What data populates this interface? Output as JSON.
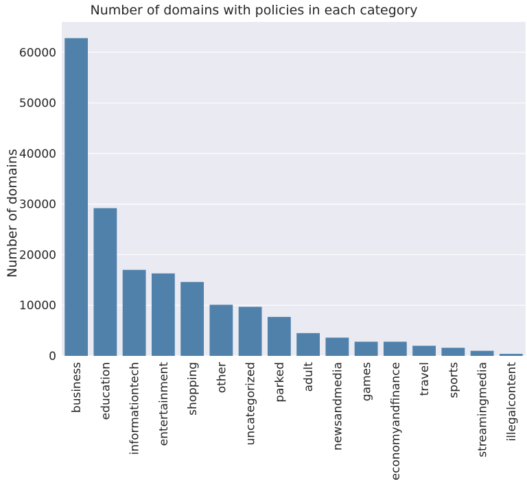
{
  "chart_data": {
    "type": "bar",
    "title": "Number of domains with policies in each category",
    "xlabel": "",
    "ylabel": "Number of domains",
    "categories": [
      "business",
      "education",
      "informationtech",
      "entertainment",
      "shopping",
      "other",
      "uncategorized",
      "parked",
      "adult",
      "newsandmedia",
      "games",
      "economyandfinance",
      "travel",
      "sports",
      "streamingmedia",
      "illegalcontent"
    ],
    "values": [
      62800,
      29200,
      17000,
      16300,
      14600,
      10100,
      9700,
      7700,
      4500,
      3600,
      2800,
      2800,
      2000,
      1600,
      1000,
      400
    ],
    "yticks": [
      0,
      10000,
      20000,
      30000,
      40000,
      50000,
      60000
    ],
    "ylim": [
      0,
      66000
    ],
    "grid": true,
    "legend": "none",
    "colors": {
      "bar": "#4f81ab",
      "plot_background": "#eaeaf2",
      "grid": "#ffffff",
      "text": "#262626"
    }
  }
}
